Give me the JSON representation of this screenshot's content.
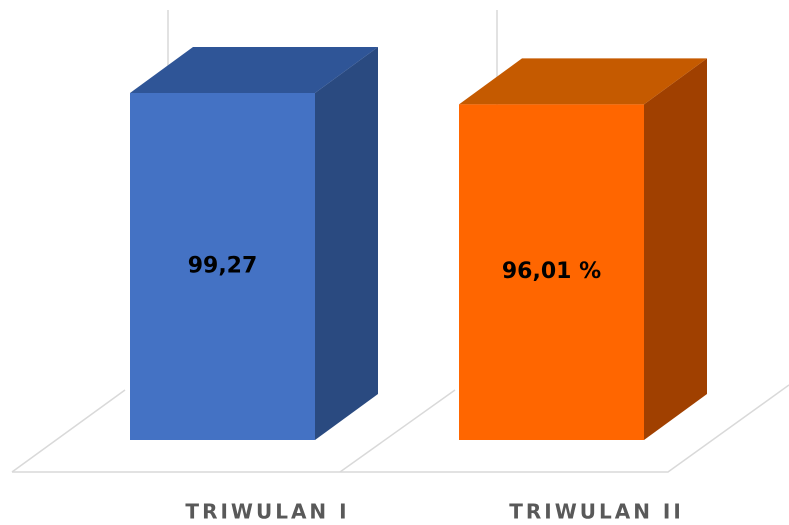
{
  "chart_data": {
    "type": "bar3d",
    "categories": [
      "TRIWULAN I",
      "TRIWULAN II"
    ],
    "series": [
      {
        "values": [
          99.27,
          96.01
        ],
        "value_labels": [
          "99,27",
          "96,01 %"
        ],
        "colors": [
          {
            "front": "#4472c4",
            "top": "#2f5597",
            "side": "#2a4a80"
          },
          {
            "front": "#ff6600",
            "top": "#c55a00",
            "side": "#a04000"
          }
        ]
      }
    ]
  }
}
